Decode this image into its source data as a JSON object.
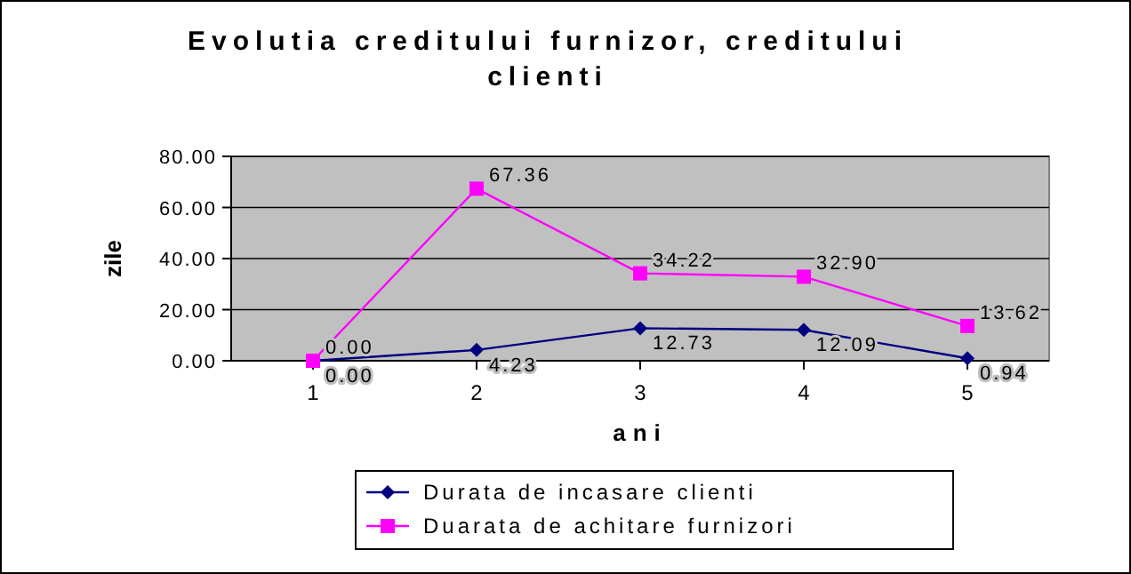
{
  "chart_data": {
    "type": "line",
    "title": "Evolutia creditului furnizor, creditului clienti",
    "xlabel": "ani",
    "ylabel": "zile",
    "categories": [
      "1",
      "2",
      "3",
      "4",
      "5"
    ],
    "series": [
      {
        "name": "Durata de incasare clienti",
        "color": "#000080",
        "marker": "diamond",
        "values": [
          0,
          4.23,
          12.73,
          12.09,
          0.94
        ],
        "value_labels": [
          "0.00",
          "4.23",
          "12.73",
          "12.09",
          "0.94"
        ]
      },
      {
        "name": "Duarata de achitare furnizori",
        "color": "#ff00ff",
        "marker": "square",
        "values": [
          0,
          67.36,
          34.22,
          32.9,
          13.62
        ],
        "value_labels": [
          "0.00",
          "67.36",
          "34.22",
          "32.90",
          "13.62"
        ]
      }
    ],
    "ylim": [
      0,
      80
    ],
    "yticks": [
      {
        "value": 0,
        "label": "0.00"
      },
      {
        "value": 20,
        "label": "20.00"
      },
      {
        "value": 40,
        "label": "40.00"
      },
      {
        "value": 60,
        "label": "60.00"
      },
      {
        "value": 80,
        "label": "80.00"
      }
    ],
    "grid": "y",
    "legend": "bottom"
  }
}
